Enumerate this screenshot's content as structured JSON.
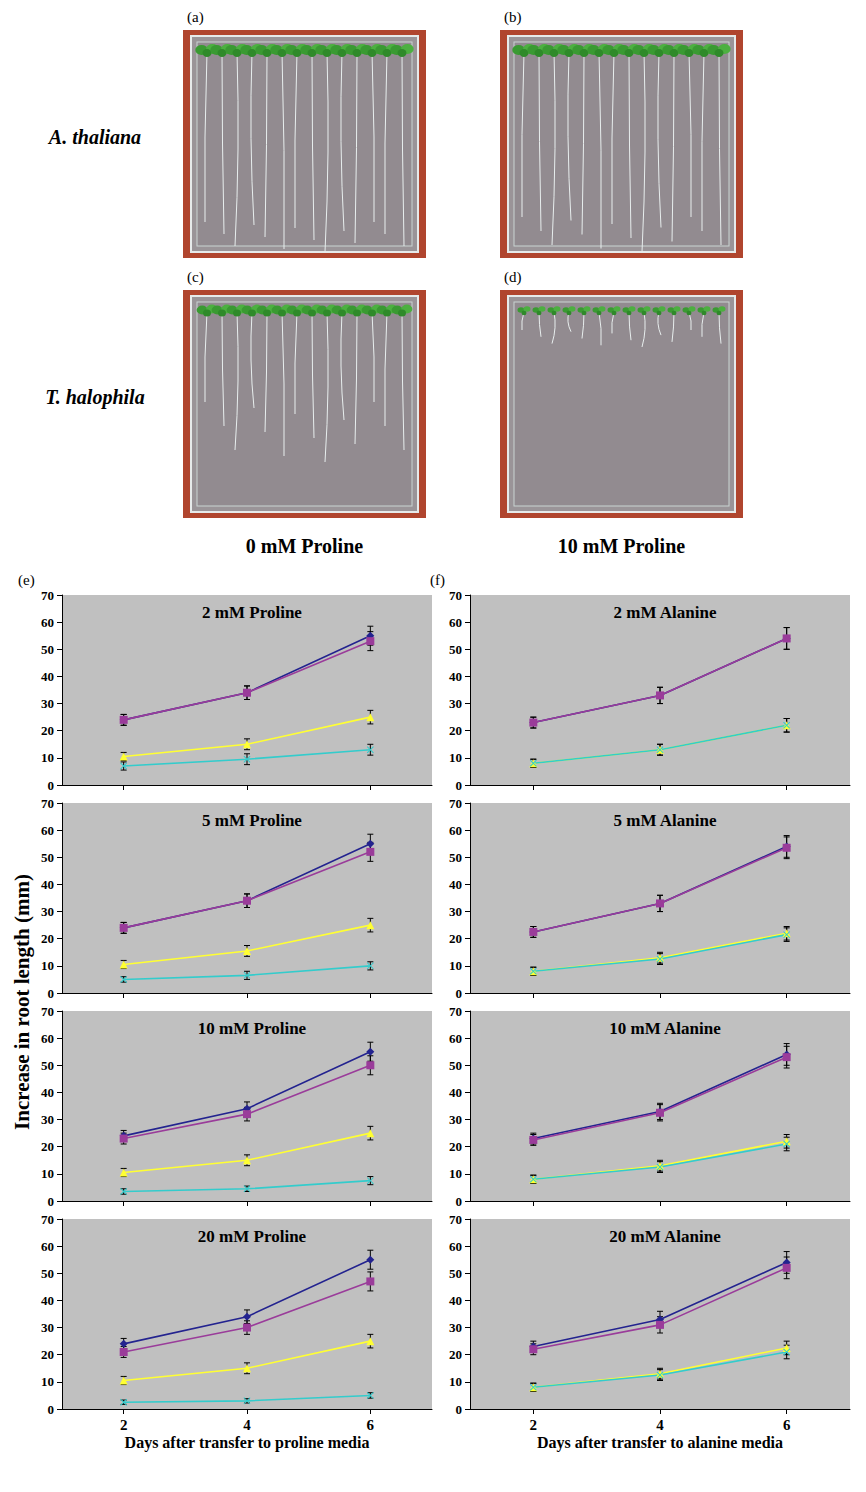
{
  "figure": {
    "photo_letters": [
      "(a)",
      "(b)",
      "(c)",
      "(d)"
    ],
    "row_labels": [
      "A. thaliana",
      "T. halophila"
    ],
    "column_labels": [
      "0 mM Proline",
      "10 mM Proline"
    ],
    "panel_letters": [
      "(e)",
      "(f)"
    ],
    "y_label": "Increase in root length (mm)"
  },
  "chart_data": [
    {
      "type": "line",
      "title": "2 mM Proline",
      "categories": [
        2,
        4,
        6
      ],
      "ylim": [
        0,
        70
      ],
      "yticks": [
        0,
        10,
        20,
        30,
        40,
        50,
        60,
        70
      ],
      "grid": false,
      "tick_labels": "y",
      "series": [
        {
          "color": "#23238f",
          "marker": "diamond",
          "values": [
            24,
            34,
            55
          ],
          "errors": [
            2,
            2.5,
            3.5
          ]
        },
        {
          "color": "#9a3c9a",
          "marker": "square",
          "values": [
            24,
            34,
            53
          ],
          "errors": [
            2,
            2.5,
            3.5
          ]
        },
        {
          "color": "#ffff33",
          "marker": "triangle",
          "values": [
            10.5,
            15,
            25
          ],
          "errors": [
            1.5,
            2,
            2.5
          ]
        },
        {
          "color": "#33cccc",
          "marker": "x",
          "values": [
            7,
            9.5,
            13
          ],
          "errors": [
            1.5,
            2,
            2
          ]
        }
      ]
    },
    {
      "type": "line",
      "title": "5 mM Proline",
      "categories": [
        2,
        4,
        6
      ],
      "ylim": [
        0,
        70
      ],
      "yticks": [
        0,
        10,
        20,
        30,
        40,
        50,
        60,
        70
      ],
      "grid": false,
      "tick_labels": "y",
      "series": [
        {
          "color": "#23238f",
          "marker": "diamond",
          "values": [
            24,
            34,
            55
          ],
          "errors": [
            2,
            2.5,
            3.5
          ]
        },
        {
          "color": "#9a3c9a",
          "marker": "square",
          "values": [
            24,
            34,
            52
          ],
          "errors": [
            2,
            2.5,
            3.5
          ]
        },
        {
          "color": "#ffff33",
          "marker": "triangle",
          "values": [
            10.5,
            15.5,
            25
          ],
          "errors": [
            1.5,
            2,
            2.5
          ]
        },
        {
          "color": "#33cccc",
          "marker": "x",
          "values": [
            5,
            6.5,
            10
          ],
          "errors": [
            1,
            1.5,
            1.5
          ]
        }
      ]
    },
    {
      "type": "line",
      "title": "10 mM Proline",
      "categories": [
        2,
        4,
        6
      ],
      "ylim": [
        0,
        70
      ],
      "yticks": [
        0,
        10,
        20,
        30,
        40,
        50,
        60,
        70
      ],
      "grid": false,
      "tick_labels": "y",
      "series": [
        {
          "color": "#23238f",
          "marker": "diamond",
          "values": [
            24,
            34,
            55
          ],
          "errors": [
            2,
            2.5,
            3.5
          ]
        },
        {
          "color": "#9a3c9a",
          "marker": "square",
          "values": [
            23,
            32,
            50
          ],
          "errors": [
            2,
            2.5,
            3.5
          ]
        },
        {
          "color": "#ffff33",
          "marker": "triangle",
          "values": [
            10.5,
            15,
            25
          ],
          "errors": [
            1.5,
            2,
            2.5
          ]
        },
        {
          "color": "#33cccc",
          "marker": "x",
          "values": [
            3.5,
            4.5,
            7.5
          ],
          "errors": [
            1,
            1,
            1.5
          ]
        }
      ]
    },
    {
      "type": "line",
      "title": "20 mM Proline",
      "categories": [
        2,
        4,
        6
      ],
      "ylim": [
        0,
        70
      ],
      "yticks": [
        0,
        10,
        20,
        30,
        40,
        50,
        60,
        70
      ],
      "grid": false,
      "x_label": "Days after transfer to proline media",
      "series": [
        {
          "color": "#23238f",
          "marker": "diamond",
          "values": [
            24,
            34,
            55
          ],
          "errors": [
            2,
            2.5,
            3.5
          ]
        },
        {
          "color": "#9a3c9a",
          "marker": "square",
          "values": [
            21,
            30,
            47
          ],
          "errors": [
            2,
            2.5,
            3.5
          ]
        },
        {
          "color": "#ffff33",
          "marker": "triangle",
          "values": [
            10.5,
            15,
            25
          ],
          "errors": [
            1.5,
            2,
            2.5
          ]
        },
        {
          "color": "#33cccc",
          "marker": "x",
          "values": [
            2.5,
            3,
            5
          ],
          "errors": [
            0.8,
            0.8,
            1
          ]
        }
      ]
    },
    {
      "type": "line",
      "title": "2 mM Alanine",
      "categories": [
        2,
        4,
        6
      ],
      "ylim": [
        0,
        70
      ],
      "yticks": [
        0,
        10,
        20,
        30,
        40,
        50,
        60,
        70
      ],
      "grid": false,
      "tick_labels": "y",
      "series": [
        {
          "color": "#23238f",
          "marker": "diamond",
          "values": [
            23,
            33,
            54
          ],
          "errors": [
            2,
            3,
            4
          ]
        },
        {
          "color": "#9a3c9a",
          "marker": "square",
          "values": [
            23,
            33,
            54
          ],
          "errors": [
            2,
            3,
            4
          ]
        },
        {
          "color": "#ffff33",
          "marker": "triangle",
          "values": [
            8,
            13,
            22
          ],
          "errors": [
            1.5,
            2,
            2.5
          ]
        },
        {
          "color": "#33cccc",
          "marker": "x",
          "values": [
            8,
            13,
            22
          ],
          "errors": [
            1.5,
            2,
            2.5
          ]
        }
      ]
    },
    {
      "type": "line",
      "title": "5 mM Alanine",
      "categories": [
        2,
        4,
        6
      ],
      "ylim": [
        0,
        70
      ],
      "yticks": [
        0,
        10,
        20,
        30,
        40,
        50,
        60,
        70
      ],
      "grid": false,
      "tick_labels": "y",
      "series": [
        {
          "color": "#23238f",
          "marker": "diamond",
          "values": [
            22.5,
            33,
            54
          ],
          "errors": [
            2,
            3,
            4
          ]
        },
        {
          "color": "#9a3c9a",
          "marker": "square",
          "values": [
            22.5,
            33,
            53.5
          ],
          "errors": [
            2,
            3,
            4
          ]
        },
        {
          "color": "#ffff33",
          "marker": "triangle",
          "values": [
            8,
            13,
            22
          ],
          "errors": [
            1.5,
            2,
            2.5
          ]
        },
        {
          "color": "#33cccc",
          "marker": "x",
          "values": [
            8,
            12.5,
            21.5
          ],
          "errors": [
            1.5,
            2,
            2.5
          ]
        }
      ]
    },
    {
      "type": "line",
      "title": "10 mM Alanine",
      "categories": [
        2,
        4,
        6
      ],
      "ylim": [
        0,
        70
      ],
      "yticks": [
        0,
        10,
        20,
        30,
        40,
        50,
        60,
        70
      ],
      "grid": false,
      "tick_labels": "y",
      "series": [
        {
          "color": "#23238f",
          "marker": "diamond",
          "values": [
            23,
            33,
            54
          ],
          "errors": [
            2,
            3,
            4
          ]
        },
        {
          "color": "#9a3c9a",
          "marker": "square",
          "values": [
            22.5,
            32.5,
            53
          ],
          "errors": [
            2,
            3,
            4
          ]
        },
        {
          "color": "#ffff33",
          "marker": "triangle",
          "values": [
            8,
            13,
            22
          ],
          "errors": [
            1.5,
            2,
            2.5
          ]
        },
        {
          "color": "#33cccc",
          "marker": "x",
          "values": [
            8,
            12.5,
            21
          ],
          "errors": [
            1.5,
            2,
            2.5
          ]
        }
      ]
    },
    {
      "type": "line",
      "title": "20 mM Alanine",
      "categories": [
        2,
        4,
        6
      ],
      "ylim": [
        0,
        70
      ],
      "yticks": [
        0,
        10,
        20,
        30,
        40,
        50,
        60,
        70
      ],
      "grid": false,
      "x_label": "Days after transfer to alanine media",
      "series": [
        {
          "color": "#23238f",
          "marker": "diamond",
          "values": [
            23,
            33,
            54
          ],
          "errors": [
            2,
            3,
            4
          ]
        },
        {
          "color": "#9a3c9a",
          "marker": "square",
          "values": [
            22,
            31,
            52
          ],
          "errors": [
            2,
            3,
            4
          ]
        },
        {
          "color": "#ffff33",
          "marker": "triangle",
          "values": [
            8,
            13,
            22.5
          ],
          "errors": [
            1.5,
            2,
            2.5
          ]
        },
        {
          "color": "#33cccc",
          "marker": "x",
          "values": [
            8,
            12.5,
            21
          ],
          "errors": [
            1.5,
            2,
            2.5
          ]
        }
      ]
    }
  ]
}
